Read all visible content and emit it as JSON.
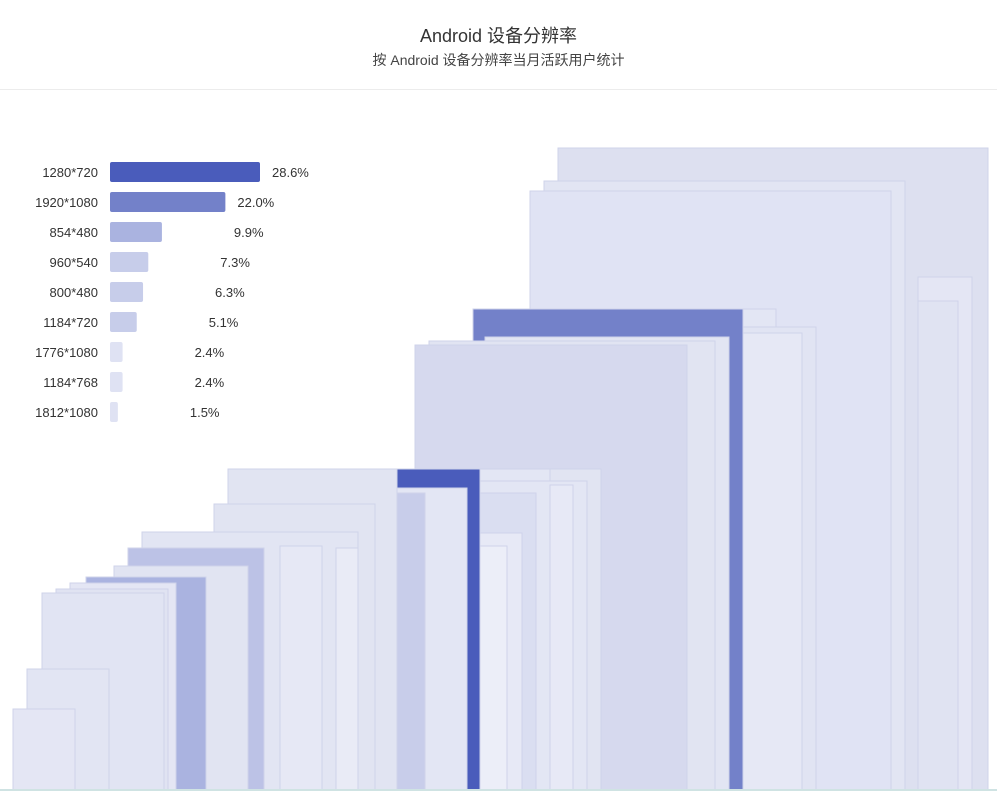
{
  "header": {
    "title": "Android 设备分辨率",
    "subtitle": "按 Android 设备分辨率当月活跃用户统计"
  },
  "colors": {
    "bar_dark": "#4a5cbb",
    "bar_mid": "#7381c9",
    "bar_light": "#aab3e0",
    "bar_pale": "#c7cdea",
    "bar_faint": "#dfe2f3"
  },
  "chart_data": {
    "type": "bar",
    "orientation": "horizontal",
    "title": "Android 设备分辨率",
    "subtitle": "按 Android 设备分辨率当月活跃用户统计",
    "categories": [
      "1280*720",
      "1920*1080",
      "854*480",
      "960*540",
      "800*480",
      "1184*720",
      "1776*1080",
      "1184*768",
      "1812*1080"
    ],
    "values": [
      28.6,
      22.0,
      9.9,
      7.3,
      6.3,
      5.1,
      2.4,
      2.4,
      1.5
    ],
    "value_labels": [
      "28.6%",
      "22.0%",
      "9.9%",
      "7.3%",
      "6.3%",
      "5.1%",
      "2.4%",
      "2.4%",
      "1.5%"
    ],
    "unit": "%"
  }
}
